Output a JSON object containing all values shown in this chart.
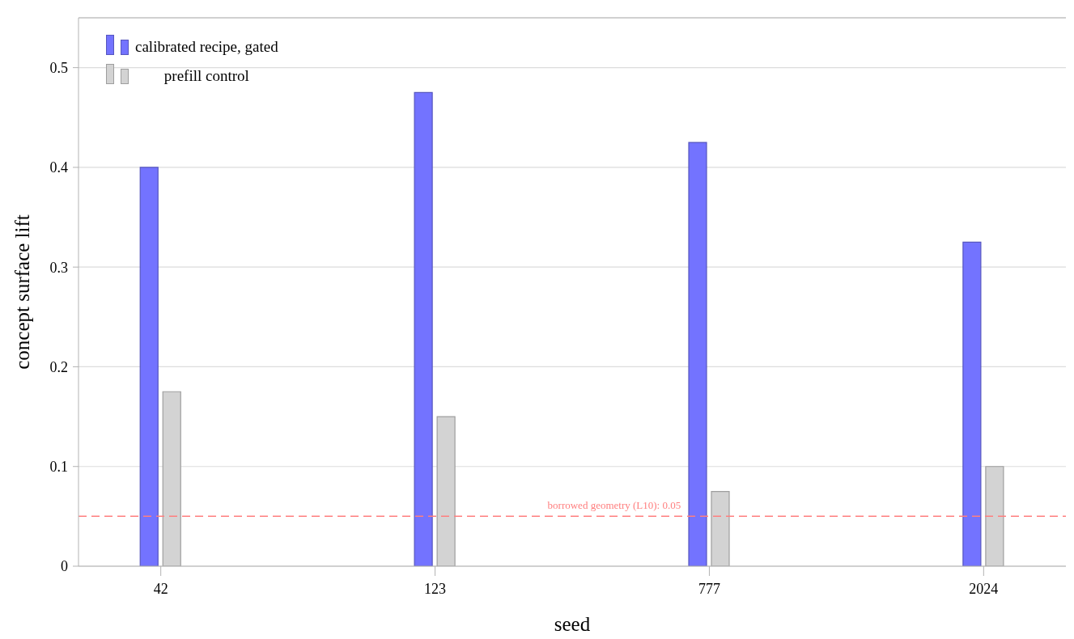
{
  "chart_data": {
    "type": "bar",
    "xlabel": "seed",
    "ylabel": "concept surface lift",
    "categories": [
      "42",
      "123",
      "777",
      "2024"
    ],
    "series": [
      {
        "name": "calibrated recipe, gated",
        "color": "#7373ff",
        "values": [
          0.4,
          0.475,
          0.425,
          0.325
        ]
      },
      {
        "name": "prefill control",
        "color": "#d3d3d3",
        "values": [
          0.175,
          0.15,
          0.075,
          0.1
        ]
      }
    ],
    "ylim": [
      0,
      0.55
    ],
    "yticks": [
      0,
      0.1,
      0.2,
      0.3,
      0.4,
      0.5
    ],
    "grid": "y",
    "legend": "top left",
    "ref_lines": [
      {
        "axis": "y",
        "value": 0.05,
        "label": "borrowed geometry (L10): 0.05",
        "color": "#ff7f7f",
        "line_style": "dashed"
      }
    ]
  }
}
